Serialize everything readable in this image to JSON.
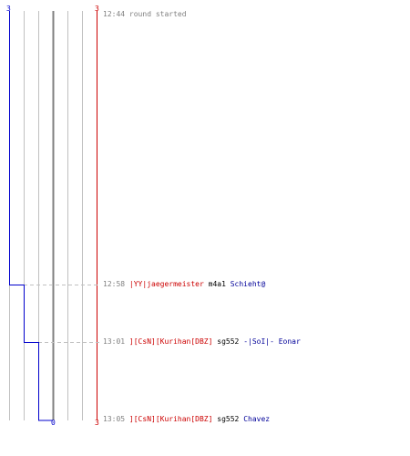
{
  "colors": {
    "blue_team": "#0000cc",
    "red_team": "#cc0000",
    "grid": "#c0c0c0",
    "center": "#808080",
    "time": "#808080",
    "weapon": "#000000",
    "victim": "#000099"
  },
  "scoreboard": {
    "blue_start": "3",
    "red_start": "3",
    "blue_end": "0",
    "red_end": "3"
  },
  "events": [
    {
      "time": "12:44",
      "text": "round started",
      "killer": "",
      "weapon": "",
      "victim": ""
    },
    {
      "time": "12:58",
      "text": "",
      "killer": "|YY|jaegermeister",
      "weapon": "m4a1",
      "victim": "Schieht@"
    },
    {
      "time": "13:01",
      "text": "",
      "killer": "][CsN][Kurihan[DBZ]",
      "weapon": "sg552",
      "victim": "-|SoI|- Eonar"
    },
    {
      "time": "13:05",
      "text": "",
      "killer": "][CsN][Kurihan[DBZ]",
      "weapon": "sg552",
      "victim": "Chavez"
    }
  ]
}
